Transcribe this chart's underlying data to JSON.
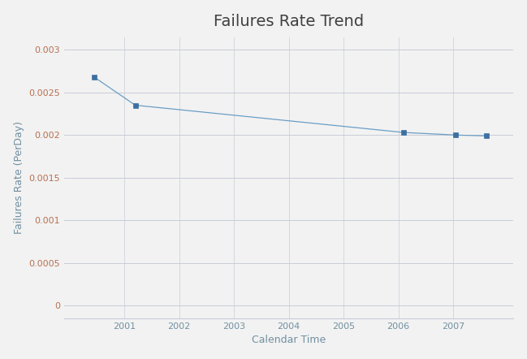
{
  "title": "Failures Rate Trend",
  "xlabel": "Calendar Time",
  "ylabel": "Failures Rate (PerDay)",
  "x_data": [
    2000.45,
    2001.2,
    2006.1,
    2007.05,
    2007.6
  ],
  "y_data": [
    0.00268,
    0.00235,
    0.00203,
    0.002,
    0.00199
  ],
  "x_ticks": [
    2001,
    2002,
    2003,
    2004,
    2005,
    2006,
    2007
  ],
  "y_ticks": [
    0,
    0.0005,
    0.001,
    0.0015,
    0.002,
    0.0025,
    0.003
  ],
  "ylim": [
    -0.00015,
    0.00315
  ],
  "xlim": [
    1999.9,
    2008.1
  ],
  "line_color": "#6a9ec5",
  "marker_color": "#3d6fa0",
  "background_color": "#f2f2f2",
  "plot_bg_color": "#f2f2f2",
  "grid_color": "#c8ccd8",
  "ytick_color": "#b87050",
  "xtick_color": "#7090a0",
  "title_color": "#404040",
  "label_color": "#7090a0",
  "title_fontsize": 14,
  "label_fontsize": 9,
  "tick_fontsize": 8
}
